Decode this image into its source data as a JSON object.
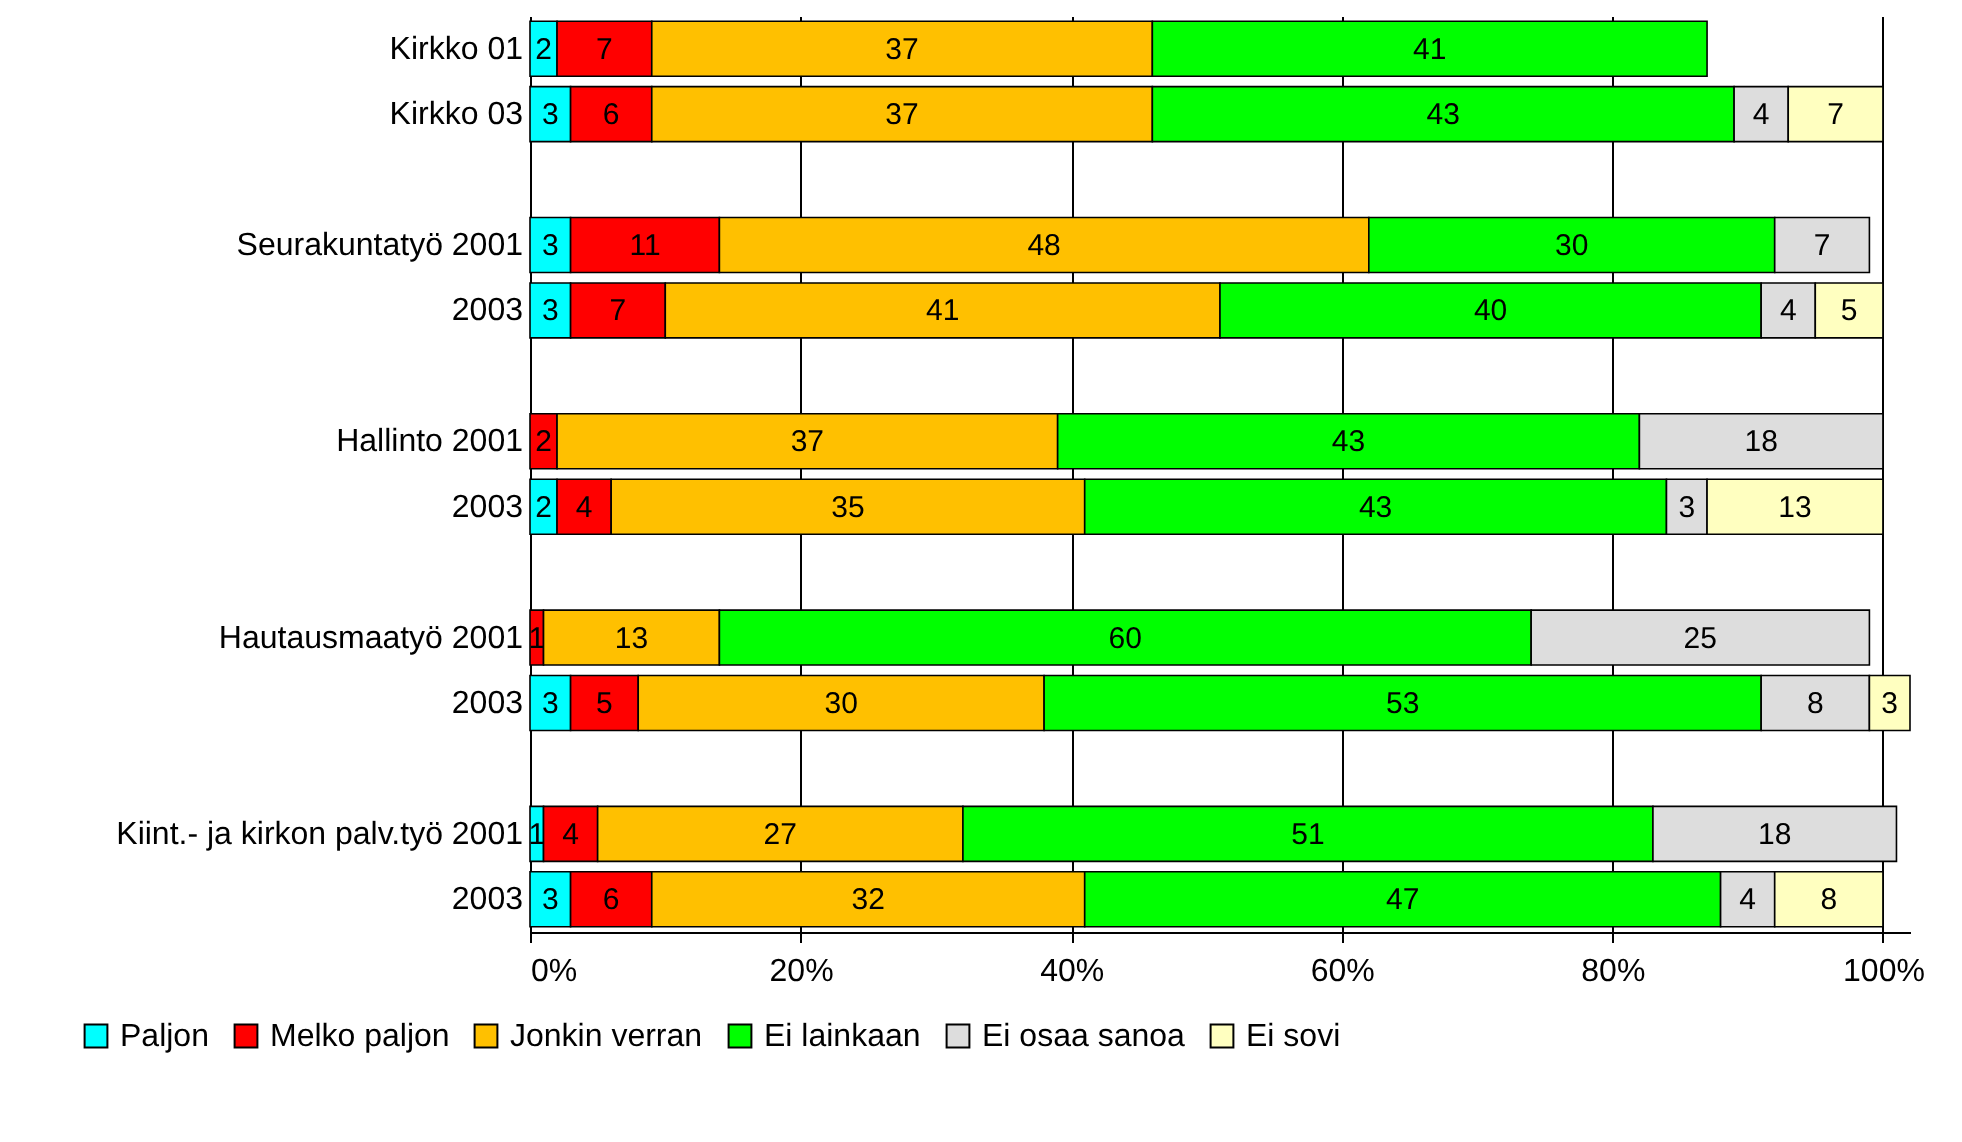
{
  "chart_data": {
    "type": "bar",
    "orientation": "horizontal",
    "stacked": true,
    "categories": [
      "Kirkko 01",
      "Kirkko 03",
      null,
      "Seurakuntatyö 2001",
      "2003",
      null,
      "Hallinto 2001",
      "2003",
      null,
      "Hautausmaatyö 2001",
      "2003",
      null,
      "Kiint.- ja kirkon palv.työ 2001",
      "2003"
    ],
    "series": [
      {
        "name": "Paljon",
        "color": "#00ffff",
        "values": [
          2,
          3,
          null,
          3,
          3,
          null,
          null,
          2,
          null,
          null,
          3,
          null,
          1,
          3
        ]
      },
      {
        "name": "Melko paljon",
        "color": "#ff0000",
        "values": [
          7,
          6,
          null,
          11,
          7,
          null,
          2,
          4,
          null,
          1,
          5,
          null,
          4,
          6
        ]
      },
      {
        "name": "Jonkin verran",
        "color": "#ffc000",
        "values": [
          37,
          37,
          null,
          48,
          41,
          null,
          37,
          35,
          null,
          13,
          30,
          null,
          27,
          32
        ]
      },
      {
        "name": "Ei lainkaan",
        "color": "#00ff00",
        "values": [
          41,
          43,
          null,
          30,
          40,
          null,
          43,
          43,
          null,
          60,
          53,
          null,
          51,
          47
        ]
      },
      {
        "name": "Ei osaa sanoa",
        "color": "#dddddd",
        "values": [
          null,
          4,
          null,
          7,
          4,
          null,
          18,
          3,
          null,
          25,
          8,
          null,
          18,
          4
        ]
      },
      {
        "name": "Ei sovi",
        "color": "#ffffc0",
        "values": [
          null,
          7,
          null,
          null,
          5,
          null,
          null,
          13,
          null,
          null,
          3,
          null,
          null,
          8
        ]
      }
    ],
    "data_labels": true,
    "xlim": [
      0,
      102
    ],
    "xticks": [
      {
        "value": 0,
        "label": "0%"
      },
      {
        "value": 20,
        "label": "20%"
      },
      {
        "value": 40,
        "label": "40%"
      },
      {
        "value": 60,
        "label": "60%"
      },
      {
        "value": 80,
        "label": "80%"
      },
      {
        "value": 100,
        "label": "100%"
      }
    ],
    "grid": "x",
    "legend": "bottom"
  }
}
